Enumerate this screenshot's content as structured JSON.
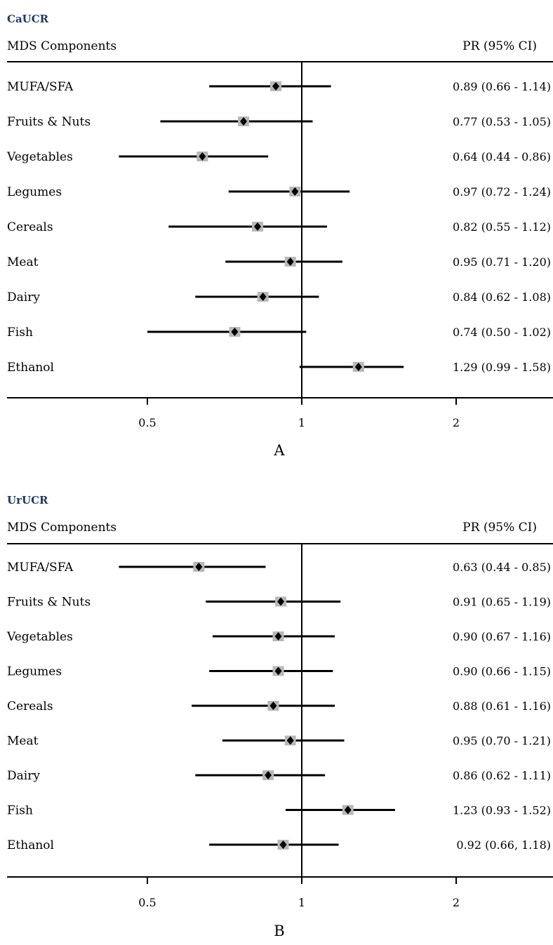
{
  "chart_data": [
    {
      "type": "forest",
      "title": "CaUCR",
      "header_left": "MDS Components",
      "header_right": "PR (95% CI)",
      "panel_label": "A",
      "x_scale": "log",
      "reference_line": 1,
      "xticks": [
        0.5,
        1,
        2
      ],
      "xtick_labels": [
        "0.5",
        "1",
        "2"
      ],
      "rows": [
        {
          "label": "MUFA/SFA",
          "estimate": 0.89,
          "lower": 0.66,
          "upper": 1.14,
          "text": "0.89 (0.66 - 1.14)"
        },
        {
          "label": "Fruits & Nuts",
          "estimate": 0.77,
          "lower": 0.53,
          "upper": 1.05,
          "text": "0.77 (0.53 - 1.05)"
        },
        {
          "label": "Vegetables",
          "estimate": 0.64,
          "lower": 0.44,
          "upper": 0.86,
          "text": "0.64 (0.44 - 0.86)"
        },
        {
          "label": "Legumes",
          "estimate": 0.97,
          "lower": 0.72,
          "upper": 1.24,
          "text": "0.97 (0.72 - 1.24)"
        },
        {
          "label": "Cereals",
          "estimate": 0.82,
          "lower": 0.55,
          "upper": 1.12,
          "text": "0.82 (0.55 - 1.12)"
        },
        {
          "label": "Meat",
          "estimate": 0.95,
          "lower": 0.71,
          "upper": 1.2,
          "text": "0.95 (0.71 - 1.20)"
        },
        {
          "label": "Dairy",
          "estimate": 0.84,
          "lower": 0.62,
          "upper": 1.08,
          "text": "0.84 (0.62 - 1.08)"
        },
        {
          "label": "Fish",
          "estimate": 0.74,
          "lower": 0.5,
          "upper": 1.02,
          "text": "0.74 (0.50 - 1.02)"
        },
        {
          "label": "Ethanol",
          "estimate": 1.29,
          "lower": 0.99,
          "upper": 1.58,
          "text": "1.29 (0.99 - 1.58)"
        }
      ]
    },
    {
      "type": "forest",
      "title": "UrUCR",
      "header_left": "MDS Components",
      "header_right": "PR (95% CI)",
      "panel_label": "B",
      "x_scale": "log",
      "reference_line": 1,
      "xticks": [
        0.5,
        1,
        2
      ],
      "xtick_labels": [
        "0.5",
        "1",
        "2"
      ],
      "rows": [
        {
          "label": "MUFA/SFA",
          "estimate": 0.63,
          "lower": 0.44,
          "upper": 0.85,
          "text": "0.63 (0.44 - 0.85)"
        },
        {
          "label": "Fruits & Nuts",
          "estimate": 0.91,
          "lower": 0.65,
          "upper": 1.19,
          "text": "0.91 (0.65 - 1.19)"
        },
        {
          "label": "Vegetables",
          "estimate": 0.9,
          "lower": 0.67,
          "upper": 1.16,
          "text": "0.90 (0.67 - 1.16)"
        },
        {
          "label": "Legumes",
          "estimate": 0.9,
          "lower": 0.66,
          "upper": 1.15,
          "text": "0.90 (0.66 - 1.15)"
        },
        {
          "label": "Cereals",
          "estimate": 0.88,
          "lower": 0.61,
          "upper": 1.16,
          "text": "0.88 (0.61 - 1.16)"
        },
        {
          "label": "Meat",
          "estimate": 0.95,
          "lower": 0.7,
          "upper": 1.21,
          "text": "0.95 (0.70 - 1.21)"
        },
        {
          "label": "Dairy",
          "estimate": 0.86,
          "lower": 0.62,
          "upper": 1.11,
          "text": "0.86 (0.62 - 1.11)"
        },
        {
          "label": "Fish",
          "estimate": 1.23,
          "lower": 0.93,
          "upper": 1.52,
          "text": "1.23 (0.93 - 1.52)"
        },
        {
          "label": "Ethanol",
          "estimate": 0.92,
          "lower": 0.66,
          "upper": 1.18,
          "text": "0.92 (0.66, 1.18)"
        }
      ]
    }
  ],
  "colors": {
    "title": "#1f3864",
    "line": "#000000",
    "marker_box": "#b8b8b8",
    "marker_diamond": "#000000"
  }
}
